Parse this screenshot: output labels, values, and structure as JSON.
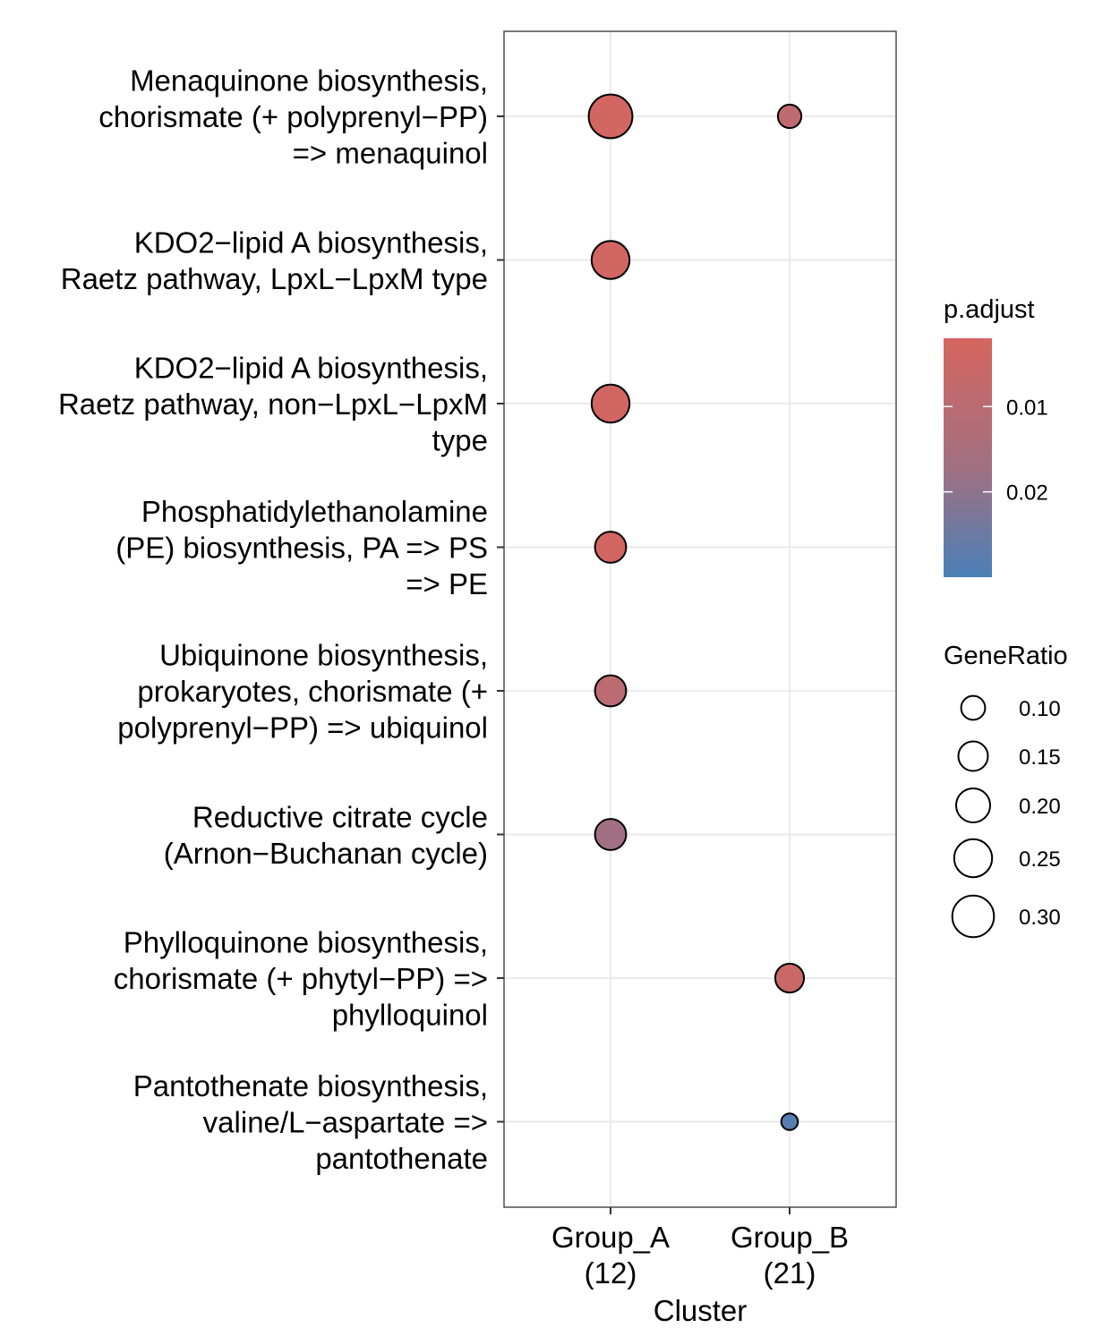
{
  "chart_data": {
    "type": "scatter",
    "xlabel": "Cluster",
    "ylabel": "",
    "categories": [
      [
        "Group_A",
        "(12)"
      ],
      [
        "Group_B",
        "(21)"
      ]
    ],
    "terms": [
      [
        "Menaquinone biosynthesis,",
        "chorismate (+ polyprenyl−PP)",
        "=> menaquinol"
      ],
      [
        "KDO2−lipid A biosynthesis,",
        "Raetz pathway, LpxL−LpxM type"
      ],
      [
        "KDO2−lipid A biosynthesis,",
        "Raetz pathway, non−LpxL−LpxM",
        "type"
      ],
      [
        "Phosphatidylethanolamine",
        "(PE) biosynthesis, PA => PS",
        "=> PE"
      ],
      [
        "Ubiquinone biosynthesis,",
        "prokaryotes, chorismate (+",
        "polyprenyl−PP) => ubiquinol"
      ],
      [
        "Reductive citrate cycle",
        "(Arnon−Buchanan cycle)"
      ],
      [
        "Phylloquinone biosynthesis,",
        "chorismate (+ phytyl−PP) =>",
        "phylloquinol"
      ],
      [
        "Pantothenate biosynthesis,",
        "valine/L−aspartate =>",
        "pantothenate"
      ]
    ],
    "points": [
      {
        "cluster": 0,
        "term": 0,
        "gene_ratio": 0.33,
        "p_adjust": 0.003
      },
      {
        "cluster": 1,
        "term": 0,
        "gene_ratio": 0.095,
        "p_adjust": 0.008
      },
      {
        "cluster": 0,
        "term": 1,
        "gene_ratio": 0.25,
        "p_adjust": 0.003
      },
      {
        "cluster": 0,
        "term": 2,
        "gene_ratio": 0.25,
        "p_adjust": 0.003
      },
      {
        "cluster": 0,
        "term": 3,
        "gene_ratio": 0.167,
        "p_adjust": 0.003
      },
      {
        "cluster": 0,
        "term": 4,
        "gene_ratio": 0.167,
        "p_adjust": 0.009
      },
      {
        "cluster": 0,
        "term": 5,
        "gene_ratio": 0.167,
        "p_adjust": 0.016
      },
      {
        "cluster": 1,
        "term": 6,
        "gene_ratio": 0.143,
        "p_adjust": 0.005
      },
      {
        "cluster": 1,
        "term": 7,
        "gene_ratio": 0.048,
        "p_adjust": 0.028
      }
    ],
    "color_legend": {
      "title": "p.adjust",
      "low_color": "#D6655F",
      "mid_color": "#A07082",
      "high_color": "#4A80B8",
      "range": [
        0.002,
        0.03
      ],
      "ticks": [
        {
          "value": 0.01,
          "label": "0.01"
        },
        {
          "value": 0.02,
          "label": "0.02"
        }
      ]
    },
    "size_legend": {
      "title": "GeneRatio",
      "breaks": [
        {
          "value": 0.1,
          "label": "0.10"
        },
        {
          "value": 0.15,
          "label": "0.15"
        },
        {
          "value": 0.2,
          "label": "0.20"
        },
        {
          "value": 0.25,
          "label": "0.25"
        },
        {
          "value": 0.3,
          "label": "0.30"
        }
      ]
    },
    "grid": true
  }
}
